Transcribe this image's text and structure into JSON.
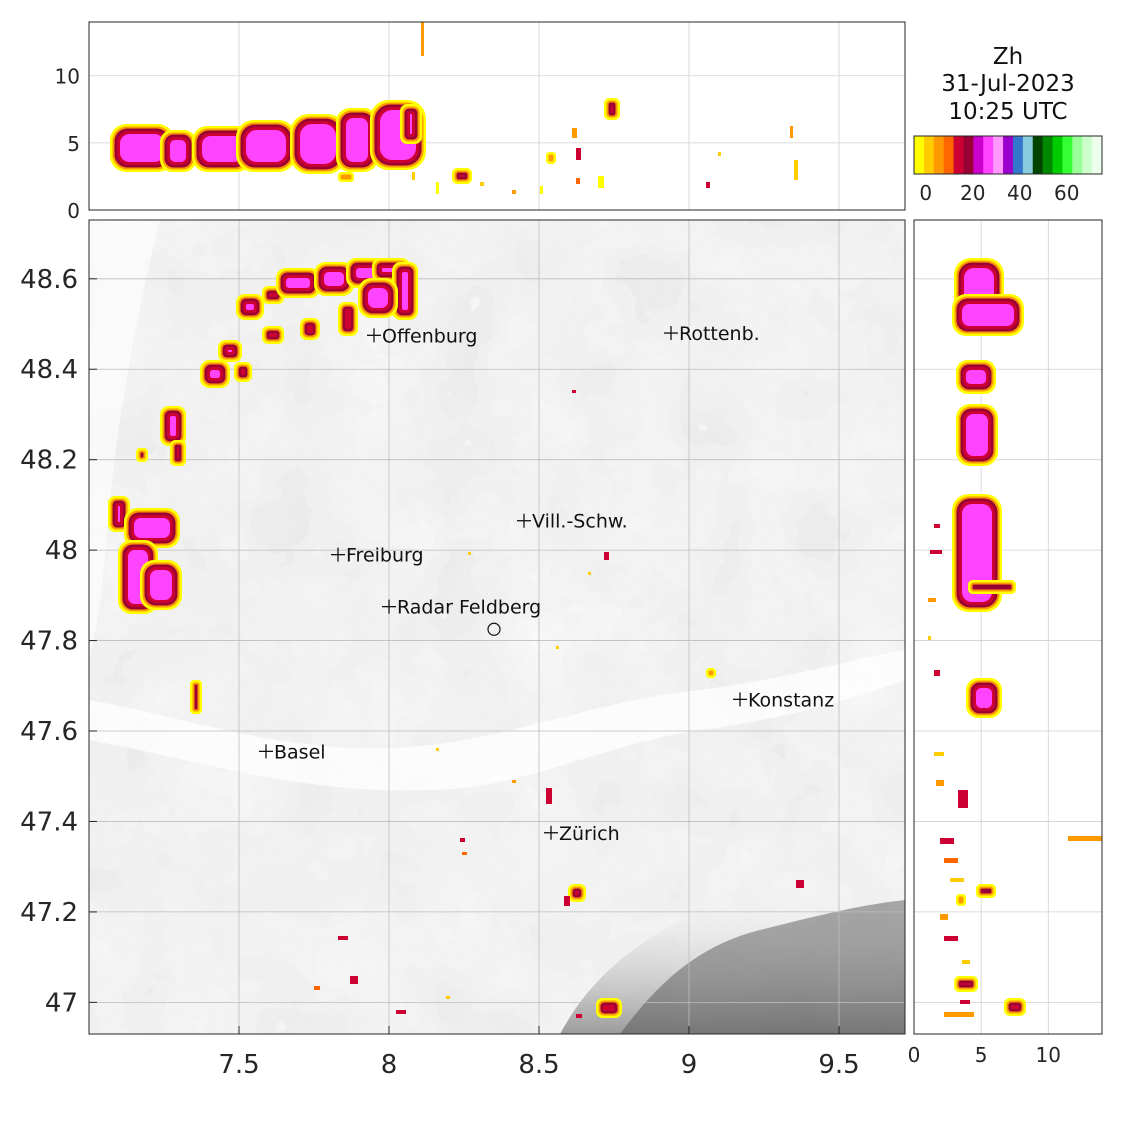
{
  "title": {
    "variable": "Zh",
    "date": "31-Jul-2023",
    "time": "10:25 UTC"
  },
  "colorbar": {
    "colors": [
      "#ffff00",
      "#ffcc00",
      "#ff9900",
      "#ff6600",
      "#cc0033",
      "#990033",
      "#cc00cc",
      "#ff44ff",
      "#ff99ff",
      "#9900cc",
      "#3377cc",
      "#88ccdd",
      "#004400",
      "#008800",
      "#00cc00",
      "#33ff33",
      "#99ff99",
      "#ccffcc",
      "#eeffee"
    ],
    "tick_labels": [
      "0",
      "20",
      "40",
      "60"
    ],
    "tick_values": [
      0,
      20,
      40,
      60
    ],
    "range": [
      -5,
      75
    ]
  },
  "main_map": {
    "lon_range": [
      7.0,
      9.72
    ],
    "lat_range": [
      46.93,
      48.73
    ],
    "x_ticks": [
      "7.5",
      "8",
      "8.5",
      "9",
      "9.5"
    ],
    "x_tick_values": [
      7.5,
      8.0,
      8.5,
      9.0,
      9.5
    ],
    "y_ticks": [
      "48.6",
      "48.4",
      "48.2",
      "48",
      "47.8",
      "47.6",
      "47.4",
      "47.2",
      "47"
    ],
    "y_tick_values": [
      48.6,
      48.4,
      48.2,
      48.0,
      47.8,
      47.6,
      47.4,
      47.2,
      47.0
    ],
    "grid": true,
    "radar_site": {
      "lon": 8.35,
      "lat": 47.825
    },
    "cities": [
      {
        "name": "Offenburg",
        "lon": 7.95,
        "lat": 48.475
      },
      {
        "name": "Rottenb.",
        "lon": 8.94,
        "lat": 48.48
      },
      {
        "name": "Vill.-Schw.",
        "lon": 8.45,
        "lat": 48.065
      },
      {
        "name": "Freiburg",
        "lon": 7.83,
        "lat": 47.99
      },
      {
        "name": "Radar Feldberg",
        "lon": 8.0,
        "lat": 47.875
      },
      {
        "name": "Konstanz",
        "lon": 9.17,
        "lat": 47.67
      },
      {
        "name": "Basel",
        "lon": 7.59,
        "lat": 47.555
      },
      {
        "name": "Zürich",
        "lon": 8.54,
        "lat": 47.375
      }
    ]
  },
  "top_panel": {
    "y_label_unit": "",
    "y_range": [
      0,
      14
    ],
    "y_ticks": [
      "0",
      "5",
      "10"
    ],
    "y_tick_values": [
      0,
      5,
      10
    ]
  },
  "right_panel": {
    "x_range": [
      0,
      14
    ],
    "x_ticks": [
      "0",
      "5",
      "10"
    ],
    "x_tick_values": [
      0,
      5,
      10
    ]
  }
}
